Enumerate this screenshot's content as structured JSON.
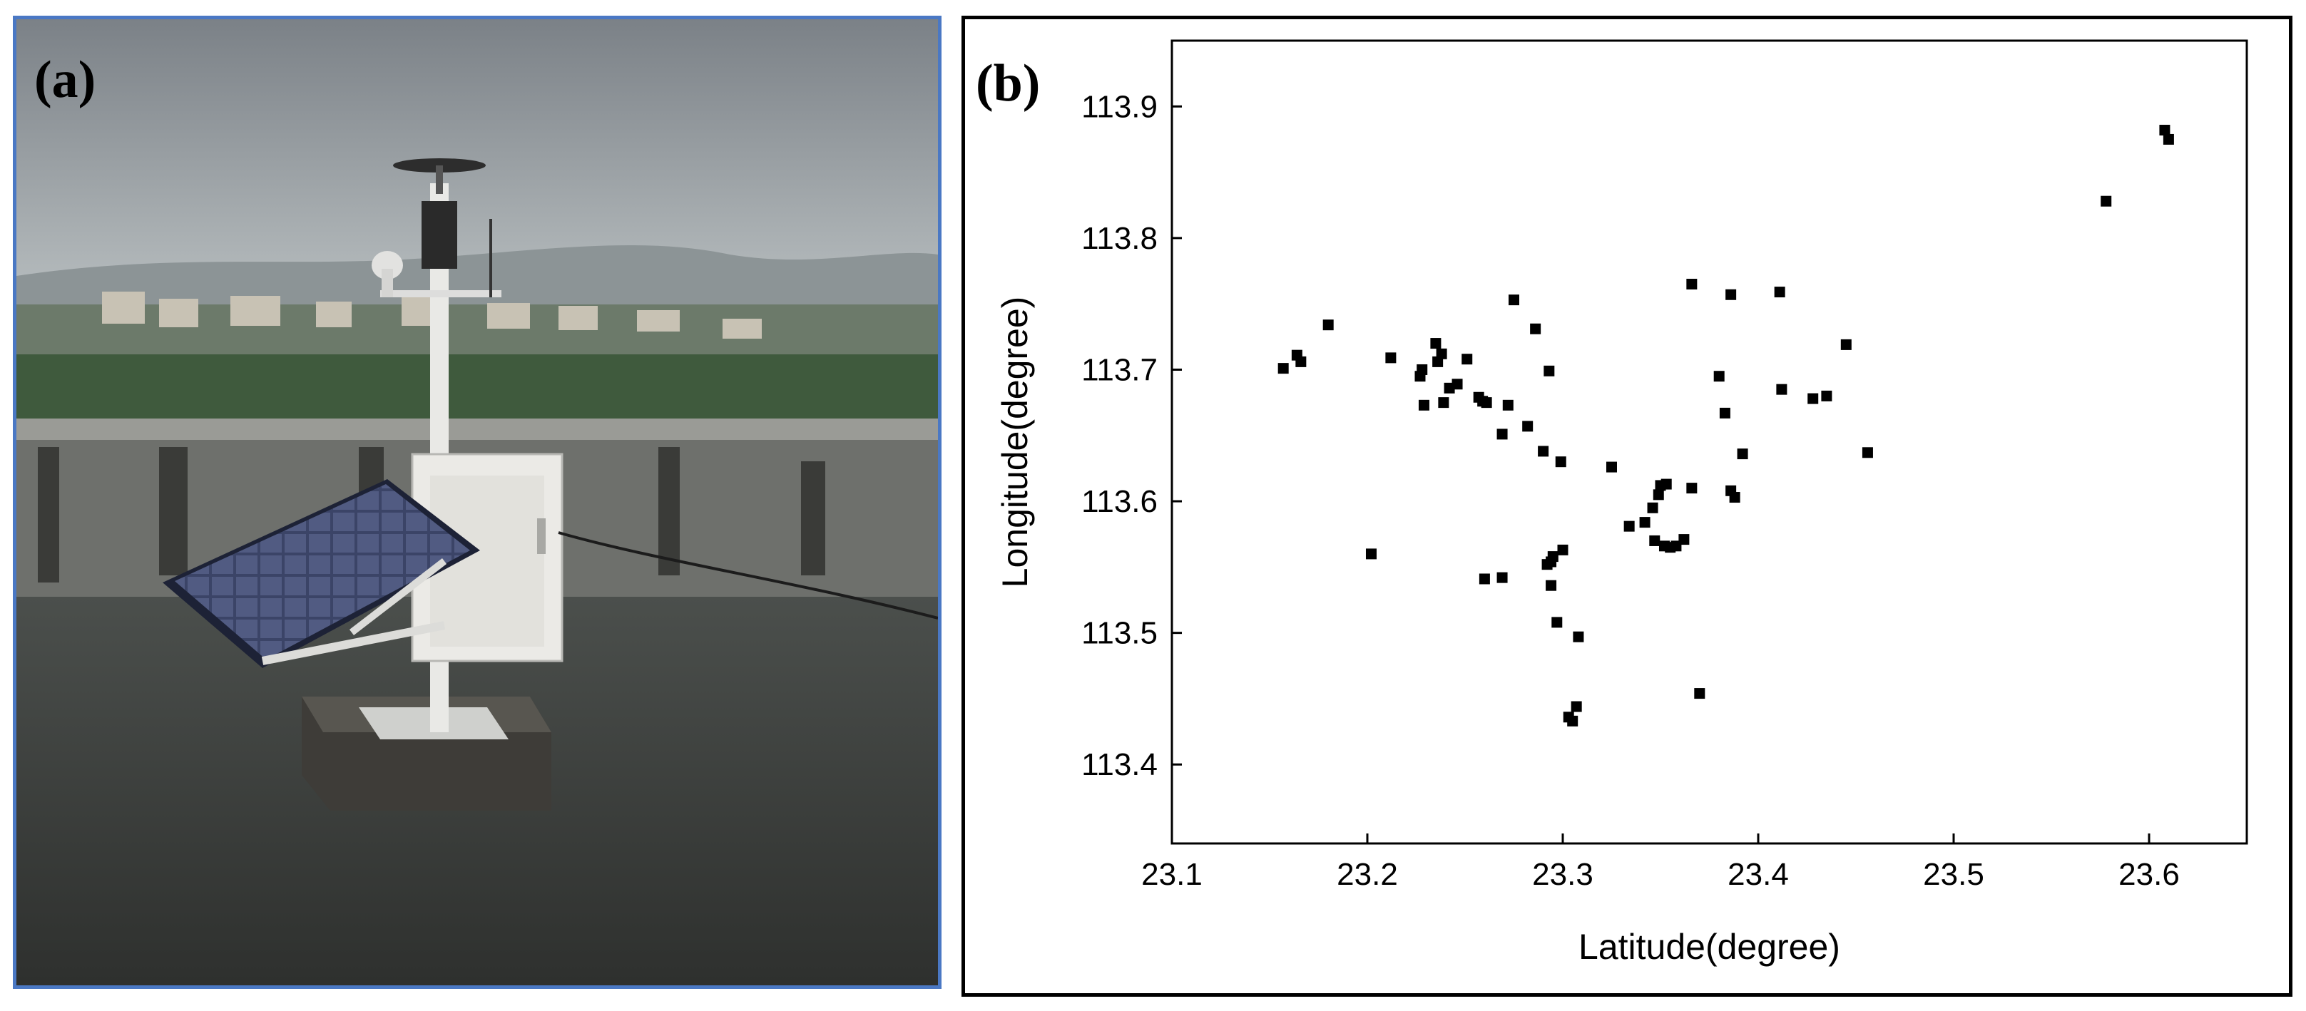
{
  "panels": {
    "a": {
      "label": "(a)"
    },
    "b": {
      "label": "(b)"
    }
  },
  "colors": {
    "photo_border": "#4a78c4",
    "chart_border": "#000000",
    "marker": "#000000"
  },
  "chart_data": {
    "type": "scatter",
    "xlabel": "Latitude(degree)",
    "ylabel": "Longitude(degree)",
    "xlim": [
      23.1,
      23.65
    ],
    "ylim": [
      113.34,
      113.95
    ],
    "xticks": [
      "23.1",
      "23.2",
      "23.3",
      "23.4",
      "23.5",
      "23.6"
    ],
    "yticks": [
      "113.4",
      "113.5",
      "113.6",
      "113.7",
      "113.8",
      "113.9"
    ],
    "grid": false,
    "marker": "square",
    "points": [
      [
        23.157,
        113.701
      ],
      [
        23.164,
        113.711
      ],
      [
        23.166,
        113.706
      ],
      [
        23.18,
        113.734
      ],
      [
        23.202,
        113.56
      ],
      [
        23.212,
        113.709
      ],
      [
        23.227,
        113.695
      ],
      [
        23.228,
        113.7
      ],
      [
        23.229,
        113.673
      ],
      [
        23.235,
        113.72
      ],
      [
        23.236,
        113.706
      ],
      [
        23.238,
        113.712
      ],
      [
        23.239,
        113.675
      ],
      [
        23.242,
        113.686
      ],
      [
        23.246,
        113.689
      ],
      [
        23.251,
        113.708
      ],
      [
        23.257,
        113.679
      ],
      [
        23.259,
        113.676
      ],
      [
        23.261,
        113.675
      ],
      [
        23.26,
        113.541
      ],
      [
        23.269,
        113.542
      ],
      [
        23.269,
        113.651
      ],
      [
        23.272,
        113.673
      ],
      [
        23.275,
        113.753
      ],
      [
        23.282,
        113.657
      ],
      [
        23.286,
        113.731
      ],
      [
        23.29,
        113.638
      ],
      [
        23.292,
        113.552
      ],
      [
        23.293,
        113.699
      ],
      [
        23.294,
        113.554
      ],
      [
        23.294,
        113.536
      ],
      [
        23.295,
        113.558
      ],
      [
        23.297,
        113.508
      ],
      [
        23.299,
        113.63
      ],
      [
        23.3,
        113.563
      ],
      [
        23.303,
        113.436
      ],
      [
        23.305,
        113.433
      ],
      [
        23.307,
        113.444
      ],
      [
        23.308,
        113.497
      ],
      [
        23.325,
        113.626
      ],
      [
        23.334,
        113.581
      ],
      [
        23.342,
        113.584
      ],
      [
        23.346,
        113.595
      ],
      [
        23.347,
        113.57
      ],
      [
        23.349,
        113.605
      ],
      [
        23.35,
        113.612
      ],
      [
        23.352,
        113.566
      ],
      [
        23.353,
        113.613
      ],
      [
        23.355,
        113.565
      ],
      [
        23.358,
        113.566
      ],
      [
        23.362,
        113.571
      ],
      [
        23.366,
        113.61
      ],
      [
        23.366,
        113.765
      ],
      [
        23.37,
        113.454
      ],
      [
        23.38,
        113.695
      ],
      [
        23.383,
        113.667
      ],
      [
        23.386,
        113.757
      ],
      [
        23.386,
        113.608
      ],
      [
        23.388,
        113.603
      ],
      [
        23.392,
        113.636
      ],
      [
        23.411,
        113.759
      ],
      [
        23.412,
        113.685
      ],
      [
        23.428,
        113.678
      ],
      [
        23.435,
        113.68
      ],
      [
        23.445,
        113.719
      ],
      [
        23.456,
        113.637
      ],
      [
        23.578,
        113.828
      ],
      [
        23.608,
        113.882
      ],
      [
        23.61,
        113.875
      ]
    ]
  }
}
